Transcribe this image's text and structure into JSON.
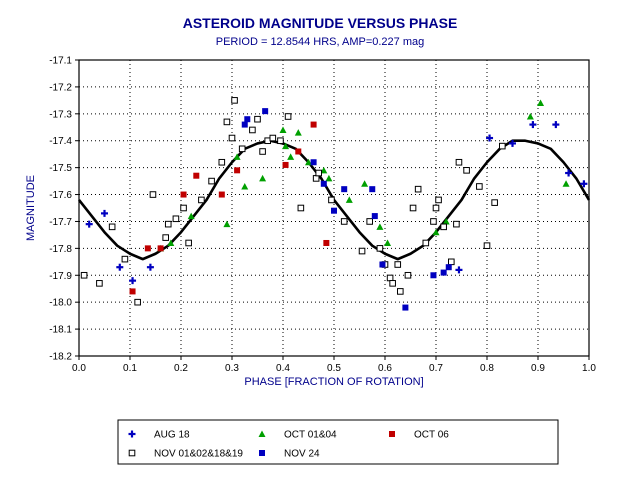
{
  "chart_data": {
    "type": "scatter",
    "title": "ASTEROID MAGNITUDE VERSUS PHASE",
    "subtitle": "PERIOD = 12.8544 HRS, AMP=0.227 mag",
    "xlabel": "PHASE [FRACTION OF ROTATION]",
    "ylabel": "MAGNITUDE",
    "xlim": [
      0.0,
      1.0
    ],
    "ylim": [
      -17.1,
      -18.2
    ],
    "y_reversed": true,
    "grid": true,
    "xticks": [
      "0.0",
      "0.1",
      "0.2",
      "0.3",
      "0.4",
      "0.5",
      "0.6",
      "0.7",
      "0.8",
      "0.9",
      "1.0"
    ],
    "yticks": [
      "-17.1",
      "-17.2",
      "-17.3",
      "-17.4",
      "-17.5",
      "-17.6",
      "-17.7",
      "-17.8",
      "-17.9",
      "-18.0",
      "-18.1",
      "-18.2"
    ],
    "legend_position": "bottom",
    "series": [
      {
        "name": "AUG 18",
        "marker": "plus",
        "color": "#0000c0",
        "x": [
          0.02,
          0.05,
          0.08,
          0.105,
          0.14,
          0.745,
          0.805,
          0.85,
          0.89,
          0.935,
          0.96,
          0.99
        ],
        "y": [
          -17.71,
          -17.67,
          -17.87,
          -17.92,
          -17.87,
          -17.88,
          -17.39,
          -17.41,
          -17.34,
          -17.34,
          -17.52,
          -17.56
        ]
      },
      {
        "name": "OCT 01&04",
        "marker": "triangle",
        "color": "#00a000",
        "x": [
          0.16,
          0.18,
          0.22,
          0.29,
          0.31,
          0.325,
          0.36,
          0.4,
          0.405,
          0.415,
          0.43,
          0.45,
          0.48,
          0.49,
          0.53,
          0.56,
          0.59,
          0.605,
          0.7,
          0.72,
          0.885,
          0.905,
          0.955
        ],
        "y": [
          -17.8,
          -17.78,
          -17.68,
          -17.71,
          -17.46,
          -17.57,
          -17.54,
          -17.36,
          -17.42,
          -17.46,
          -17.37,
          -17.48,
          -17.51,
          -17.54,
          -17.62,
          -17.56,
          -17.72,
          -17.78,
          -17.74,
          -17.7,
          -17.31,
          -17.26,
          -17.56
        ]
      },
      {
        "name": "OCT 06",
        "marker": "square",
        "color": "#c00000",
        "x": [
          0.105,
          0.135,
          0.16,
          0.205,
          0.23,
          0.28,
          0.31,
          0.405,
          0.43,
          0.46,
          0.485
        ],
        "y": [
          -17.96,
          -17.8,
          -17.8,
          -17.6,
          -17.53,
          -17.6,
          -17.51,
          -17.49,
          -17.44,
          -17.34,
          -17.78
        ]
      },
      {
        "name": "NOV 01&02&18&19",
        "marker": "open-square",
        "color": "#000000",
        "x": [
          0.01,
          0.04,
          0.065,
          0.09,
          0.115,
          0.145,
          0.17,
          0.175,
          0.19,
          0.205,
          0.215,
          0.24,
          0.26,
          0.28,
          0.29,
          0.3,
          0.305,
          0.32,
          0.34,
          0.35,
          0.36,
          0.37,
          0.38,
          0.395,
          0.41,
          0.435,
          0.465,
          0.47,
          0.495,
          0.52,
          0.555,
          0.57,
          0.59,
          0.6,
          0.61,
          0.615,
          0.625,
          0.63,
          0.645,
          0.655,
          0.665,
          0.68,
          0.695,
          0.7,
          0.705,
          0.715,
          0.73,
          0.74,
          0.745,
          0.76,
          0.785,
          0.8,
          0.815,
          0.83
        ],
        "y": [
          -17.9,
          -17.93,
          -17.72,
          -17.84,
          -18.0,
          -17.6,
          -17.76,
          -17.71,
          -17.69,
          -17.65,
          -17.78,
          -17.62,
          -17.55,
          -17.48,
          -17.33,
          -17.39,
          -17.25,
          -17.43,
          -17.36,
          -17.32,
          -17.44,
          -17.4,
          -17.39,
          -17.4,
          -17.31,
          -17.65,
          -17.54,
          -17.52,
          -17.62,
          -17.7,
          -17.81,
          -17.7,
          -17.8,
          -17.86,
          -17.91,
          -17.93,
          -17.86,
          -17.96,
          -17.9,
          -17.65,
          -17.58,
          -17.78,
          -17.7,
          -17.65,
          -17.62,
          -17.72,
          -17.85,
          -17.71,
          -17.48,
          -17.51,
          -17.57,
          -17.79,
          -17.63,
          -17.42
        ]
      },
      {
        "name": "NOV 24",
        "marker": "square",
        "color": "#0000c0",
        "x": [
          0.325,
          0.33,
          0.365,
          0.46,
          0.48,
          0.5,
          0.52,
          0.575,
          0.58,
          0.595,
          0.64,
          0.695,
          0.715,
          0.725
        ],
        "y": [
          -17.34,
          -17.32,
          -17.29,
          -17.48,
          -17.56,
          -17.66,
          -17.58,
          -17.58,
          -17.68,
          -17.86,
          -18.02,
          -17.9,
          -17.89,
          -17.87
        ]
      }
    ],
    "fit_curve": {
      "period_fraction": 0.5,
      "mean": -17.62,
      "amplitude": 0.2,
      "x": [
        0.0,
        0.025,
        0.05,
        0.075,
        0.1,
        0.125,
        0.15,
        0.175,
        0.2,
        0.225,
        0.25,
        0.275,
        0.3,
        0.325,
        0.35,
        0.375,
        0.4,
        0.425,
        0.45,
        0.475,
        0.5,
        0.525,
        0.55,
        0.575,
        0.6,
        0.625,
        0.65,
        0.675,
        0.7,
        0.725,
        0.75,
        0.775,
        0.8,
        0.825,
        0.85,
        0.875,
        0.9,
        0.925,
        0.95,
        0.975,
        1.0
      ],
      "y": [
        -17.62,
        -17.68,
        -17.74,
        -17.79,
        -17.82,
        -17.84,
        -17.82,
        -17.79,
        -17.74,
        -17.68,
        -17.62,
        -17.54,
        -17.48,
        -17.43,
        -17.41,
        -17.4,
        -17.41,
        -17.43,
        -17.48,
        -17.54,
        -17.62,
        -17.68,
        -17.74,
        -17.79,
        -17.82,
        -17.84,
        -17.82,
        -17.79,
        -17.74,
        -17.68,
        -17.62,
        -17.54,
        -17.48,
        -17.43,
        -17.4,
        -17.4,
        -17.41,
        -17.43,
        -17.48,
        -17.54,
        -17.62
      ]
    },
    "colors": {
      "title": "#00008b",
      "axis_label": "#00008b",
      "grid": "#000000"
    }
  }
}
